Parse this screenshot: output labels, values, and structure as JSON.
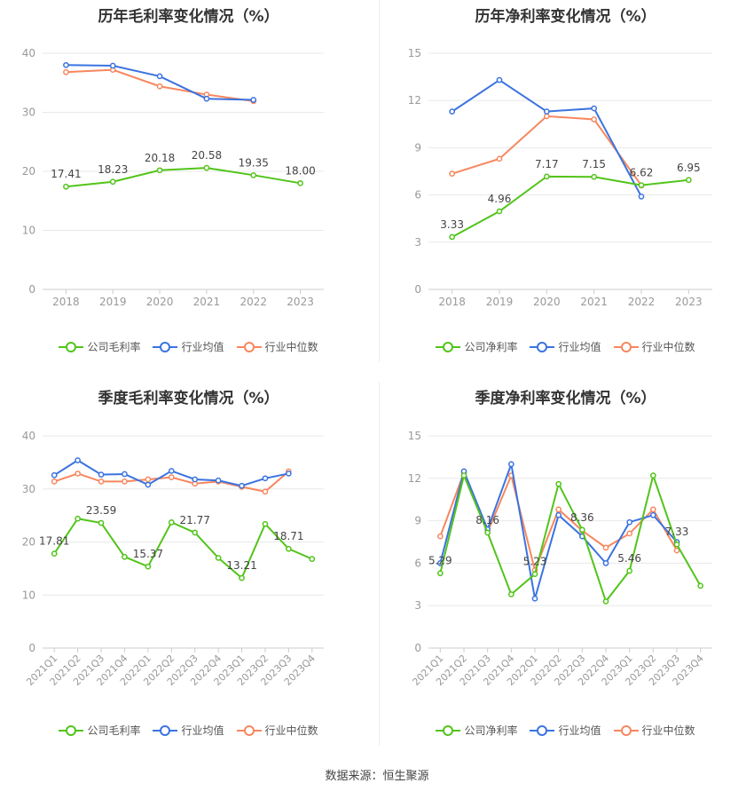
{
  "colors": {
    "company": "#52c41a",
    "avg": "#3b73e0",
    "median": "#f7875f",
    "grid": "#e8e8e8",
    "axis": "#999999"
  },
  "source": "数据来源：恒生聚源",
  "chart_data": [
    {
      "type": "line",
      "title": "历年毛利率变化情况（%）",
      "categories": [
        "2018",
        "2019",
        "2020",
        "2021",
        "2022",
        "2023"
      ],
      "ylim": [
        0,
        40
      ],
      "yticks": [
        "0",
        "10",
        "20",
        "30",
        "40"
      ],
      "grid": true,
      "legend_position": "bottom",
      "series": [
        {
          "name": "公司毛利率",
          "values": [
            17.41,
            18.23,
            20.18,
            20.58,
            19.35,
            18.0
          ],
          "labels": [
            "17.41",
            "18.23",
            "20.18",
            "20.58",
            "19.35",
            "18.00"
          ]
        },
        {
          "name": "行业均值",
          "values": [
            38.0,
            37.9,
            36.1,
            32.3,
            32.1,
            null
          ]
        },
        {
          "name": "行业中位数",
          "values": [
            36.8,
            37.2,
            34.4,
            33.0,
            31.9,
            null
          ]
        }
      ]
    },
    {
      "type": "line",
      "title": "历年净利率变化情况（%）",
      "categories": [
        "2018",
        "2019",
        "2020",
        "2021",
        "2022",
        "2023"
      ],
      "ylim": [
        0,
        15
      ],
      "yticks": [
        "0",
        "3",
        "6",
        "9",
        "12",
        "15"
      ],
      "grid": true,
      "legend_position": "bottom",
      "series": [
        {
          "name": "公司净利率",
          "values": [
            3.33,
            4.96,
            7.17,
            7.15,
            6.62,
            6.95
          ],
          "labels": [
            "3.33",
            "4.96",
            "7.17",
            "7.15",
            "6.62",
            "6.95"
          ]
        },
        {
          "name": "行业均值",
          "values": [
            11.3,
            13.3,
            11.3,
            11.5,
            5.9,
            null
          ]
        },
        {
          "name": "行业中位数",
          "values": [
            7.35,
            8.3,
            11.0,
            10.8,
            6.6,
            null
          ]
        }
      ]
    },
    {
      "type": "line",
      "title": "季度毛利率变化情况（%）",
      "categories": [
        "2021Q1",
        "2021Q2",
        "2021Q3",
        "2021Q4",
        "2022Q1",
        "2022Q2",
        "2022Q3",
        "2022Q4",
        "2023Q1",
        "2023Q2",
        "2023Q3",
        "2023Q4"
      ],
      "ylim": [
        0,
        40
      ],
      "yticks": [
        "0",
        "10",
        "20",
        "30",
        "40"
      ],
      "grid": true,
      "legend_position": "bottom",
      "series": [
        {
          "name": "公司毛利率",
          "values": [
            17.81,
            24.4,
            23.59,
            17.2,
            15.37,
            23.7,
            21.77,
            17.0,
            13.21,
            23.4,
            18.71,
            16.8
          ],
          "labels": [
            "17.81",
            "",
            "23.59",
            "",
            "15.37",
            "",
            "21.77",
            "",
            "13.21",
            "",
            "18.71",
            ""
          ]
        },
        {
          "name": "行业均值",
          "values": [
            32.6,
            35.4,
            32.7,
            32.8,
            30.8,
            33.4,
            31.8,
            31.6,
            30.6,
            32.0,
            32.9,
            null
          ]
        },
        {
          "name": "行业中位数",
          "values": [
            31.4,
            32.9,
            31.4,
            31.4,
            31.8,
            32.2,
            31.0,
            31.4,
            30.4,
            29.5,
            33.3,
            null
          ]
        }
      ]
    },
    {
      "type": "line",
      "title": "季度净利率变化情况（%）",
      "categories": [
        "2021Q1",
        "2021Q2",
        "2021Q3",
        "2021Q4",
        "2022Q1",
        "2022Q2",
        "2022Q3",
        "2022Q4",
        "2023Q1",
        "2023Q2",
        "2023Q3",
        "2023Q4"
      ],
      "ylim": [
        0,
        15
      ],
      "yticks": [
        "0",
        "3",
        "6",
        "9",
        "12",
        "15"
      ],
      "grid": true,
      "legend_position": "bottom",
      "series": [
        {
          "name": "公司净利率",
          "values": [
            5.29,
            12.2,
            8.16,
            3.8,
            5.23,
            11.6,
            8.36,
            3.3,
            5.46,
            12.2,
            7.33,
            4.4
          ],
          "labels": [
            "5.29",
            "",
            "8.16",
            "",
            "5.23",
            "",
            "8.36",
            "",
            "5.46",
            "",
            "7.33",
            ""
          ]
        },
        {
          "name": "行业均值",
          "values": [
            6.0,
            12.5,
            8.4,
            13.0,
            3.5,
            9.4,
            7.9,
            6.0,
            8.9,
            9.4,
            7.5,
            null
          ]
        },
        {
          "name": "行业中位数",
          "values": [
            7.9,
            12.4,
            8.2,
            12.2,
            5.5,
            9.8,
            8.3,
            7.1,
            8.1,
            9.8,
            6.9,
            null
          ]
        }
      ]
    }
  ]
}
